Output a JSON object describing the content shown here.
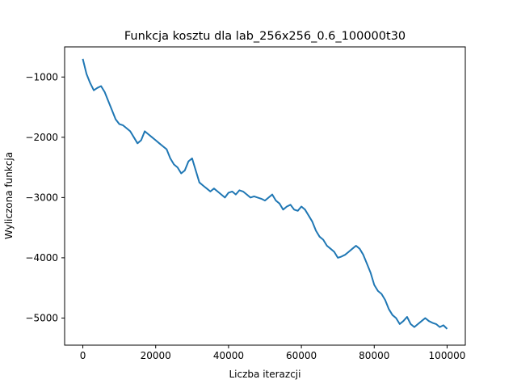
{
  "chart_data": {
    "type": "line",
    "title": "Funkcja kosztu dla lab_256x256_0.6_100000t30",
    "xlabel": "Liczba iterazcji",
    "ylabel": "Wyliczona funkcja",
    "xlim": [
      -5000,
      105000
    ],
    "ylim": [
      -5450,
      -500
    ],
    "xticks": [
      0,
      20000,
      40000,
      60000,
      80000,
      100000
    ],
    "xtick_labels": [
      "0",
      "20000",
      "40000",
      "60000",
      "80000",
      "100000"
    ],
    "yticks": [
      -1000,
      -2000,
      -3000,
      -4000,
      -5000
    ],
    "ytick_labels": [
      "−1000",
      "−2000",
      "−3000",
      "−4000",
      "−5000"
    ],
    "grid": false,
    "series": [
      {
        "color": "#1f77b4",
        "x": [
          0,
          1000,
          2000,
          3000,
          4000,
          5000,
          6000,
          7000,
          8000,
          9000,
          10000,
          11000,
          12000,
          13000,
          14000,
          15000,
          16000,
          17000,
          18000,
          19000,
          20000,
          21000,
          22000,
          23000,
          24000,
          25000,
          26000,
          27000,
          28000,
          29000,
          30000,
          31000,
          32000,
          33000,
          34000,
          35000,
          36000,
          37000,
          38000,
          39000,
          40000,
          41000,
          42000,
          43000,
          44000,
          45000,
          46000,
          47000,
          48000,
          49000,
          50000,
          51000,
          52000,
          53000,
          54000,
          55000,
          56000,
          57000,
          58000,
          59000,
          60000,
          61000,
          62000,
          63000,
          64000,
          65000,
          66000,
          67000,
          68000,
          69000,
          70000,
          71000,
          72000,
          73000,
          74000,
          75000,
          76000,
          77000,
          78000,
          79000,
          80000,
          81000,
          82000,
          83000,
          84000,
          85000,
          86000,
          87000,
          88000,
          89000,
          90000,
          91000,
          92000,
          93000,
          94000,
          95000,
          96000,
          97000,
          98000,
          99000,
          100000
        ],
        "values": [
          -700,
          -950,
          -1100,
          -1220,
          -1180,
          -1150,
          -1250,
          -1400,
          -1550,
          -1700,
          -1780,
          -1800,
          -1850,
          -1900,
          -2000,
          -2100,
          -2050,
          -1900,
          -1950,
          -2000,
          -2050,
          -2100,
          -2150,
          -2200,
          -2350,
          -2450,
          -2500,
          -2600,
          -2550,
          -2400,
          -2350,
          -2550,
          -2750,
          -2800,
          -2850,
          -2900,
          -2850,
          -2900,
          -2950,
          -3000,
          -2920,
          -2900,
          -2950,
          -2880,
          -2900,
          -2950,
          -3000,
          -2980,
          -3000,
          -3020,
          -3050,
          -3000,
          -2950,
          -3050,
          -3100,
          -3200,
          -3150,
          -3120,
          -3200,
          -3220,
          -3150,
          -3200,
          -3300,
          -3400,
          -3550,
          -3650,
          -3700,
          -3800,
          -3850,
          -3900,
          -4000,
          -3980,
          -3950,
          -3900,
          -3850,
          -3800,
          -3850,
          -3950,
          -4100,
          -4250,
          -4450,
          -4550,
          -4600,
          -4700,
          -4850,
          -4950,
          -5000,
          -5100,
          -5050,
          -4980,
          -5100,
          -5150,
          -5100,
          -5050,
          -5000,
          -5050,
          -5080,
          -5100,
          -5150,
          -5120,
          -5180
        ]
      }
    ]
  }
}
